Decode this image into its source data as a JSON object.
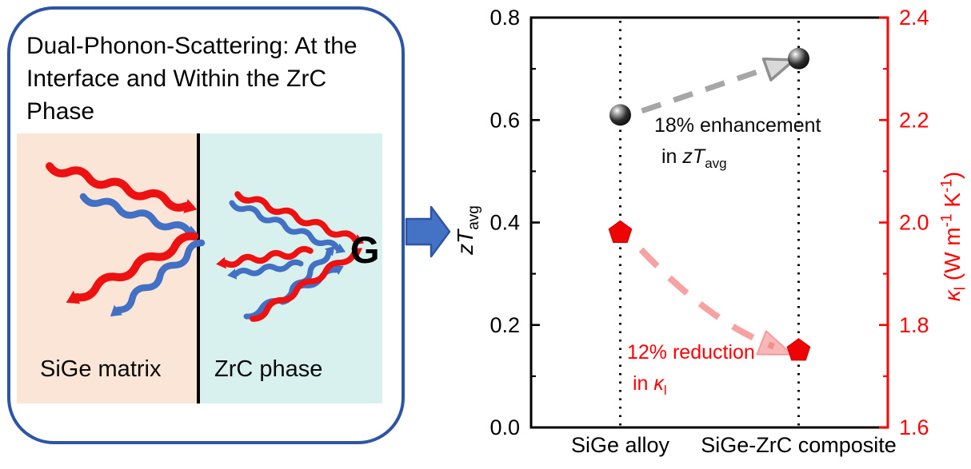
{
  "panel": {
    "title": "Dual-Phonon-Scattering: At the Interface and Within the ZrC Phase",
    "regions": {
      "left_label": "SiGe matrix",
      "right_label": "ZrC phase"
    },
    "g_label": "G"
  },
  "chart_data": {
    "type": "scatter",
    "categories": [
      "SiGe alloy",
      "SiGe-ZrC composite"
    ],
    "series": [
      {
        "name": "zTavg",
        "axis": "left",
        "marker": "black-sphere",
        "values": [
          0.61,
          0.72
        ]
      },
      {
        "name": "kappa_lattice",
        "axis": "right",
        "marker": "red-pentagon",
        "values": [
          1.98,
          1.75
        ]
      }
    ],
    "y_left": {
      "min": 0.0,
      "max": 0.8,
      "major_ticks": [
        0.0,
        0.2,
        0.4,
        0.6,
        0.8
      ],
      "minor_step": 0.1,
      "color": "#000000"
    },
    "y_right": {
      "min": 1.6,
      "max": 2.4,
      "major_ticks": [
        1.6,
        1.8,
        2.0,
        2.2,
        2.4
      ],
      "minor_step": 0.1,
      "color": "#fe0000"
    },
    "grid": "dotted vertical line at each category",
    "legend": "none",
    "trend_arrows": [
      {
        "series": "zTavg",
        "style": "gray dashed",
        "change_pct": "+18%"
      },
      {
        "series": "kappa_lattice",
        "style": "pink dashed",
        "change_pct": "-12%"
      }
    ]
  },
  "axis_labels": {
    "left": {
      "italic": "zT",
      "sub": "avg"
    },
    "right": {
      "italic": "κ",
      "sub": "l",
      "unit_pre": " (W m",
      "sup1": "-1",
      "unit_mid": " K",
      "sup2": "-1",
      "unit_post": ")"
    }
  },
  "annotations": {
    "zt": {
      "line1": "18% enhancement",
      "line2_prefix": "in ",
      "line2_italic": "zT",
      "line2_sub": "avg"
    },
    "kappa": {
      "line1": "12% reduction",
      "line2_prefix": "in ",
      "line2_italic": "κ",
      "line2_sub": "l"
    }
  },
  "colors": {
    "box_border": "#2e55a5",
    "flow_arrow": "#4472c4",
    "sige_region": "#fbe5d6",
    "zrc_region": "#d9f1ee",
    "phonon_red": "#ee1111",
    "phonon_blue": "#4170c4",
    "axis_right_red": "#fe0000",
    "trend_gray": "#a6a6a6",
    "trend_pink": "#f7a2a2",
    "sphere_marker": "#000000",
    "pentagon_marker": "#ee0404"
  }
}
